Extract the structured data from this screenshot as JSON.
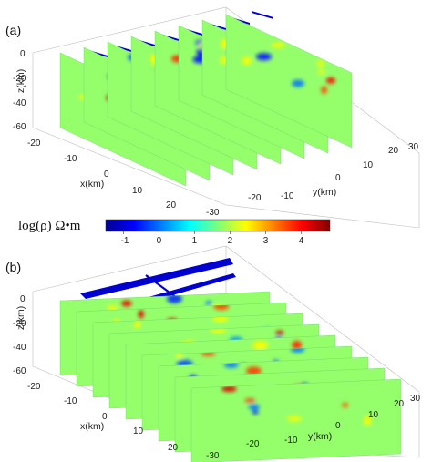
{
  "figure": {
    "panels": [
      {
        "label": "(a)",
        "zlabel": "z(km)",
        "xlabel": "x(km)",
        "ylabel": "y(km)",
        "z_ticks": [
          "0",
          "-20",
          "-40",
          "-60"
        ],
        "x_ticks": [
          "-20",
          "-10",
          "0",
          "10",
          "20"
        ],
        "y_ticks": [
          "-30",
          "-20",
          "-10",
          "0",
          "10",
          "20",
          "30"
        ],
        "style": "xslices"
      },
      {
        "label": "(b)",
        "zlabel": "z(km)",
        "xlabel": "x(km)",
        "ylabel": "y(km)",
        "z_ticks": [
          "0",
          "-20",
          "-40",
          "-60"
        ],
        "x_ticks": [
          "-20",
          "-10",
          "0",
          "10",
          "20"
        ],
        "y_ticks": [
          "-30",
          "-20",
          "-10",
          "0",
          "10",
          "20",
          "30"
        ],
        "style": "yslices"
      }
    ],
    "colorbar": {
      "label": "log(ρ) Ω•m",
      "ticks": [
        "-1",
        "0",
        "1",
        "2",
        "3",
        "4"
      ],
      "range": [
        -1.5,
        4.8
      ],
      "colormap": "jet"
    }
  },
  "chart_data": [
    {
      "type": "heatmap",
      "panel": "(a)",
      "xlabel": "x(km)",
      "ylabel": "y(km)",
      "zlabel": "z(km)",
      "xlim": [
        -25,
        25
      ],
      "ylim": [
        -30,
        30
      ],
      "zlim": [
        -60,
        0
      ],
      "color_range": [
        -1.5,
        4.8
      ],
      "slice_axis": "y",
      "slice_count": 8
    },
    {
      "type": "heatmap",
      "panel": "(b)",
      "xlabel": "x(km)",
      "ylabel": "y(km)",
      "zlabel": "z(km)",
      "xlim": [
        -25,
        25
      ],
      "ylim": [
        -30,
        30
      ],
      "zlim": [
        -60,
        0
      ],
      "color_range": [
        -1.5,
        4.8
      ],
      "slice_axis": "x",
      "slice_count": 9
    }
  ]
}
